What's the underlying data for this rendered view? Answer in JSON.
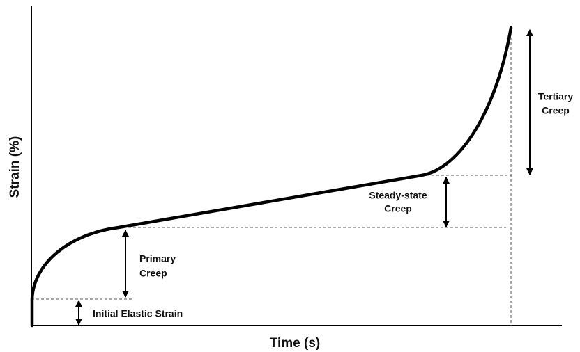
{
  "diagram": {
    "x_axis_label": "Time (s)",
    "y_axis_label": "Strain (%)",
    "regions": [
      {
        "lines": [
          "Initial Elastic Strain"
        ]
      },
      {
        "lines": [
          "Primary",
          "Creep"
        ]
      },
      {
        "lines": [
          "Steady-state",
          "Creep"
        ]
      },
      {
        "lines": [
          "Tertiary",
          "Creep"
        ]
      }
    ]
  }
}
